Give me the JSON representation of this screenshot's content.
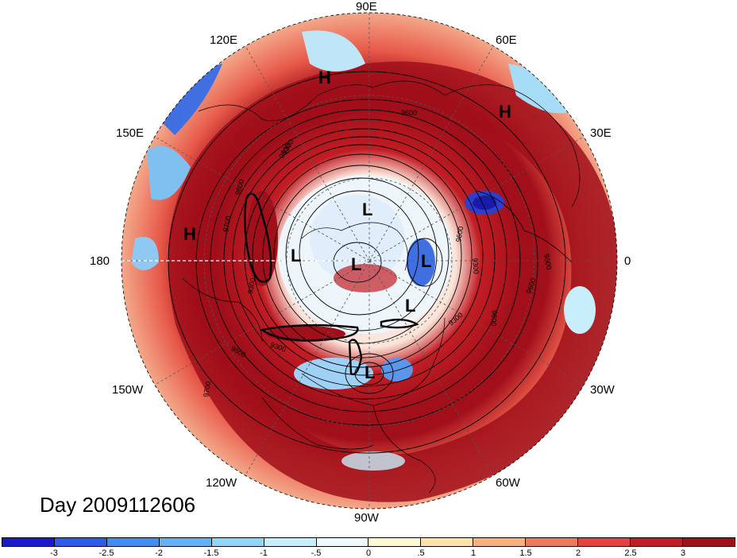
{
  "title": "Day 2009112606",
  "longitude_labels": {
    "e90": "90E",
    "e120": "120E",
    "e60": "60E",
    "e150": "150E",
    "e30": "30E",
    "d180": "180",
    "d0": "0",
    "w150": "150W",
    "w30": "30W",
    "w120": "120W",
    "w60": "60W",
    "w90": "90W"
  },
  "pressure_centers": [
    {
      "label": "H",
      "near": "north-west Pacific sector"
    },
    {
      "label": "H",
      "near": "north-east Asia / 90E-120E"
    },
    {
      "label": "H",
      "near": "western Russia / 45E"
    },
    {
      "label": "L",
      "near": "pole / Siberia"
    },
    {
      "label": "L",
      "near": "pole centre"
    },
    {
      "label": "L",
      "near": "eastern Siberia / 150E"
    },
    {
      "label": "L",
      "near": "Greenland / Europe side"
    },
    {
      "label": "L",
      "near": "North Atlantic"
    },
    {
      "label": "L",
      "near": "Hudson Bay / North America"
    }
  ],
  "contour_labels": [
    "9600",
    "9300",
    "9700",
    "9600",
    "9300",
    "9600",
    "9300",
    "9600",
    "9600",
    "9300",
    "9600",
    "9700",
    "9300",
    "9600",
    "9600"
  ],
  "colorbar": {
    "colors": [
      "#1a1acc",
      "#2b5ee6",
      "#3f8ff0",
      "#62b3f5",
      "#8fd6f7",
      "#c7eefa",
      "#eefaff",
      "#fffad6",
      "#fde4a4",
      "#f6b27a",
      "#ee7a5a",
      "#e64040",
      "#c21d24",
      "#a00f1a"
    ],
    "tick_labels": [
      "-3",
      "-2.5",
      "-2",
      "-1.5",
      "-1",
      "-.5",
      "0",
      ".5",
      "1",
      "1.5",
      "2",
      "2.5",
      "3"
    ]
  },
  "icons": {
    "pressure-high": "H",
    "pressure-low": "L"
  }
}
